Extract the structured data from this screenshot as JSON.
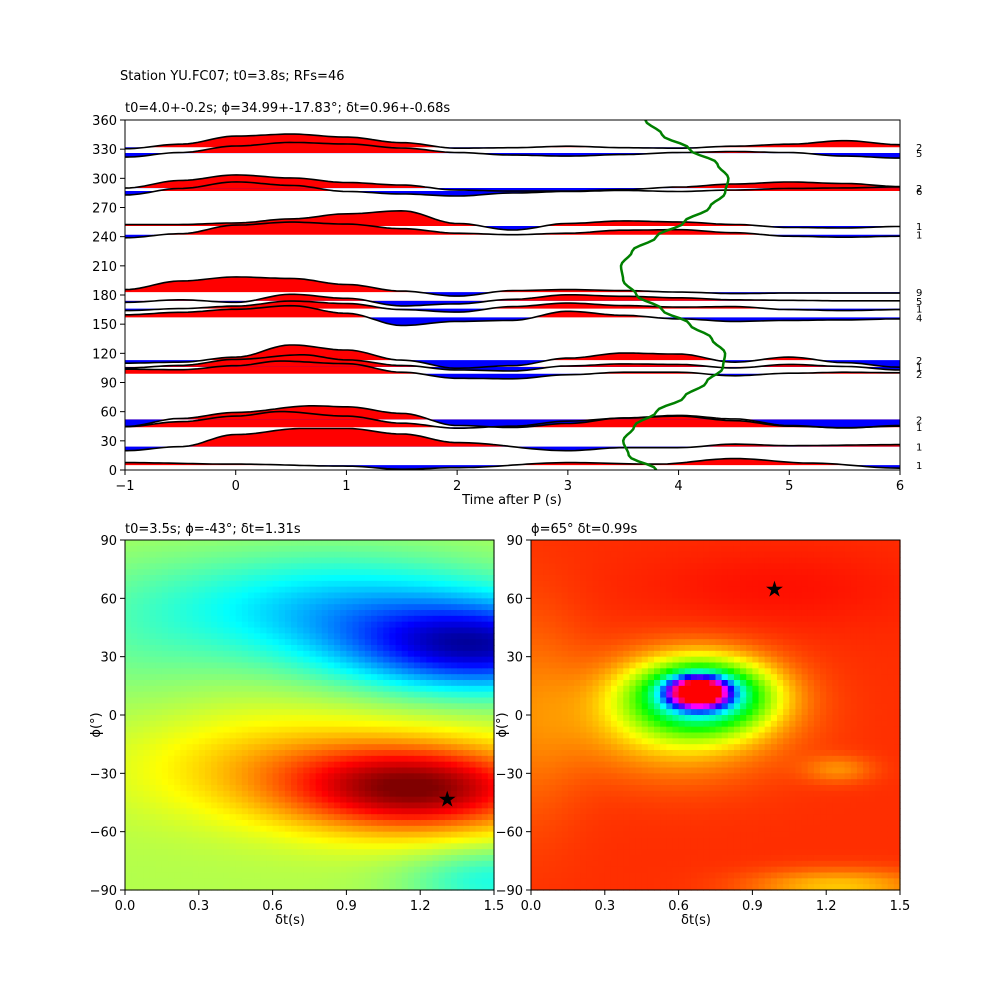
{
  "figure": {
    "suptitle": "Station YU.FC07; t0=3.8s; RFs=46"
  },
  "chart_data": [
    {
      "type": "line",
      "title": "t0=4.0+-0.2s; ϕ=34.99+-17.83°; δt=0.96+-0.68s",
      "xlabel": "Time after P (s)",
      "ylabel": "",
      "xlim": [
        -1,
        6
      ],
      "ylim": [
        0,
        360
      ],
      "xticks": [
        "−1",
        "0",
        "1",
        "2",
        "3",
        "4",
        "5",
        "6"
      ],
      "xtick_values": [
        -1,
        0,
        1,
        2,
        3,
        4,
        5,
        6
      ],
      "yticks": [
        "0",
        "30",
        "60",
        "90",
        "120",
        "150",
        "180",
        "210",
        "240",
        "270",
        "300",
        "330",
        "360"
      ],
      "ytick_values": [
        0,
        30,
        60,
        90,
        120,
        150,
        180,
        210,
        240,
        270,
        300,
        330,
        360
      ],
      "fill_positive_color": "#ff0000",
      "fill_negative_color": "#0000ff",
      "trace_color": "#000000",
      "traces": [
        {
          "baz": 5,
          "count": "1",
          "t": [
            -1,
            0,
            1,
            1.5,
            2,
            3,
            3.8,
            4.5,
            5.2,
            6
          ],
          "v": [
            0.5,
            0.2,
            -0.2,
            -0.8,
            -0.5,
            0.5,
            0.2,
            1.3,
            0.4,
            -0.6
          ]
        },
        {
          "baz": 24,
          "count": "1",
          "t": [
            -1,
            -0.5,
            0,
            0.6,
            1,
            1.5,
            2,
            3,
            3.5,
            4,
            4.5,
            5,
            6
          ],
          "v": [
            -0.8,
            0,
            2.4,
            3.6,
            3.6,
            2.5,
            0.8,
            -0.8,
            -0.2,
            -0.2,
            0.5,
            0.2,
            0.4
          ]
        },
        {
          "baz": 44,
          "count": "1",
          "t": [
            -1,
            -0.5,
            0,
            0.4,
            1,
            1.5,
            2,
            2.5,
            3,
            3.5,
            4,
            4.5,
            5,
            5.5,
            6
          ],
          "v": [
            0.1,
            1.1,
            2.2,
            3.1,
            2.2,
            0.8,
            -0.2,
            0.2,
            1.2,
            1.8,
            2.2,
            1.3,
            0.2,
            -0.1,
            0.2
          ]
        },
        {
          "baz": 52,
          "count": "2",
          "t": [
            -1,
            -0.5,
            0,
            0.7,
            1,
            1.5,
            2,
            2.5,
            3,
            3.5,
            4,
            4.5,
            5,
            5.5,
            6
          ],
          "v": [
            -1.4,
            0.2,
            1.4,
            2.7,
            2.5,
            1.2,
            -1.2,
            -1.6,
            -0.8,
            0.3,
            0.8,
            0.1,
            -1.2,
            -1.7,
            -1.2
          ]
        },
        {
          "baz": 99,
          "count": "2",
          "t": [
            -1,
            -0.5,
            0,
            0.4,
            1,
            1.5,
            2,
            2.5,
            3,
            3.5,
            4,
            4.5,
            5,
            5.5,
            6
          ],
          "v": [
            0.9,
            0.8,
            1.6,
            2.5,
            2.0,
            0.3,
            -0.9,
            -1.0,
            -0.2,
            0.3,
            0.3,
            -0.4,
            0.1,
            0.3,
            0.2
          ]
        },
        {
          "baz": 106,
          "count": "1",
          "t": [
            -1,
            -0.5,
            0,
            0.6,
            1,
            1.5,
            2,
            2.5,
            3,
            3.5,
            4,
            4.5,
            5,
            5.5,
            6
          ],
          "v": [
            -0.2,
            0.3,
            1.5,
            2.4,
            1.4,
            0.3,
            -0.6,
            -0.8,
            0.2,
            0.6,
            0.5,
            -0.2,
            0.5,
            0.1,
            -0.6
          ]
        },
        {
          "baz": 113,
          "count": "2",
          "t": [
            -1,
            -0.5,
            0,
            0.5,
            1,
            1.5,
            2,
            2.5,
            3,
            3.5,
            4,
            4.5,
            5,
            5.5,
            6
          ],
          "v": [
            -0.6,
            -0.4,
            0.6,
            3.0,
            2.0,
            0.0,
            -1.6,
            -1.1,
            0.4,
            1.4,
            1.2,
            -0.4,
            0.6,
            -0.5,
            -1.4
          ]
        },
        {
          "baz": 157,
          "count": "4",
          "t": [
            -1,
            -0.5,
            0,
            0.5,
            1,
            1.5,
            2,
            2.5,
            3,
            3.5,
            4,
            4.5,
            5,
            5.5,
            6
          ],
          "v": [
            0.5,
            1.0,
            1.6,
            2.3,
            0.8,
            -1.6,
            -0.8,
            -0.6,
            1.2,
            0.4,
            -0.3,
            -0.8,
            -0.6,
            -0.5,
            -0.3
          ]
        },
        {
          "baz": 166,
          "count": "1",
          "t": [
            -1,
            -0.5,
            0,
            0.5,
            1,
            1.5,
            2,
            2.5,
            3,
            3.5,
            4,
            4.5,
            5,
            5.5,
            6
          ],
          "v": [
            -0.4,
            0.0,
            0.5,
            1.5,
            1.0,
            -0.2,
            -0.7,
            0.4,
            1.1,
            0.6,
            0.3,
            0.4,
            -0.2,
            -0.4,
            -0.2
          ]
        },
        {
          "baz": 174,
          "count": "5",
          "t": [
            -1,
            -0.5,
            0,
            0.5,
            1,
            1.5,
            2,
            2.5,
            3,
            3.5,
            4,
            4.5,
            5,
            5.5,
            6
          ],
          "v": [
            -0.3,
            0.2,
            -0.3,
            1.3,
            0.5,
            -1.0,
            -0.6,
            0.3,
            1.2,
            0.9,
            0.6,
            0.2,
            0.1,
            0.0,
            0.0
          ]
        },
        {
          "baz": 183,
          "count": "9",
          "t": [
            -1,
            -0.5,
            0,
            0.5,
            1,
            1.5,
            2,
            2.5,
            3,
            3.5,
            4,
            4.5,
            5,
            5.5,
            6
          ],
          "v": [
            0.5,
            2.2,
            3.0,
            2.7,
            1.5,
            0.2,
            -0.8,
            0.3,
            0.5,
            0.3,
            0.0,
            -0.3,
            -0.2,
            -0.2,
            -0.2
          ]
        },
        {
          "baz": 242,
          "count": "1",
          "t": [
            -1,
            -0.5,
            0,
            0.5,
            1,
            1.5,
            2,
            2.5,
            3,
            3.5,
            4,
            4.5,
            5,
            5.5,
            6
          ],
          "v": [
            -0.6,
            0.2,
            1.9,
            2.5,
            2.1,
            1.2,
            0.3,
            0.0,
            0.3,
            0.9,
            1.0,
            0.4,
            -0.3,
            -0.5,
            -0.3
          ]
        },
        {
          "baz": 251,
          "count": "1",
          "t": [
            -1,
            -0.5,
            0,
            0.5,
            1,
            1.5,
            2,
            2.5,
            3,
            3.5,
            4,
            4.5,
            5,
            5.5,
            6
          ],
          "v": [
            0.3,
            0.3,
            0.6,
            1.4,
            2.4,
            3.0,
            0.5,
            -0.8,
            0.5,
            1.0,
            0.8,
            0.3,
            -0.3,
            -0.4,
            -0.1
          ]
        },
        {
          "baz": 287,
          "count": "6",
          "t": [
            -1,
            -0.5,
            0,
            0.5,
            1,
            1.5,
            2,
            2.5,
            3,
            3.5,
            4,
            4.5,
            5,
            5.5,
            6
          ],
          "v": [
            -0.8,
            0.5,
            1.8,
            1.1,
            -0.1,
            -0.6,
            -1.0,
            -0.4,
            -0.1,
            0.1,
            -0.1,
            0.2,
            0.5,
            0.6,
            0.8
          ]
        },
        {
          "baz": 290,
          "count": "2",
          "t": [
            -1,
            -0.5,
            0,
            0.5,
            1,
            1.5,
            2,
            2.5,
            3,
            3.5,
            4,
            4.5,
            5,
            5.5,
            6
          ],
          "v": [
            0.0,
            1.5,
            2.6,
            2.0,
            1.1,
            0.6,
            -0.4,
            -0.6,
            -0.6,
            -0.3,
            0.2,
            0.8,
            1.2,
            0.9,
            0.3
          ]
        },
        {
          "baz": 326,
          "count": "5",
          "t": [
            -1,
            -0.5,
            0,
            0.5,
            1,
            1.5,
            2,
            2.5,
            3,
            3.5,
            4,
            4.5,
            5,
            5.5,
            6
          ],
          "v": [
            -0.8,
            0.1,
            1.4,
            2.1,
            1.8,
            1.0,
            0.1,
            -0.4,
            -0.6,
            -0.3,
            0.1,
            0.3,
            0.1,
            -0.6,
            -1.0
          ]
        },
        {
          "baz": 332,
          "count": "2",
          "t": [
            -1,
            -0.5,
            0,
            0.5,
            1,
            1.5,
            2,
            2.5,
            3,
            3.5,
            4,
            4.5,
            5,
            5.5,
            6
          ],
          "v": [
            -0.3,
            0.6,
            2.2,
            2.6,
            2.0,
            0.9,
            -0.2,
            -0.1,
            0.2,
            -0.1,
            -0.2,
            0.2,
            0.6,
            1.3,
            0.5
          ]
        }
      ],
      "curve_color": "#008000",
      "curve": {
        "baz": [
          0,
          15,
          30,
          45,
          60,
          75,
          90,
          105,
          120,
          135,
          150,
          165,
          180,
          195,
          210,
          225,
          240,
          255,
          270,
          285,
          300,
          315,
          330,
          345,
          360
        ],
        "t": [
          3.8,
          3.55,
          3.5,
          3.6,
          3.8,
          4.05,
          4.25,
          4.4,
          4.42,
          4.3,
          4.1,
          3.85,
          3.62,
          3.5,
          3.48,
          3.58,
          3.8,
          4.05,
          4.28,
          4.42,
          4.45,
          4.35,
          4.1,
          3.85,
          3.7
        ]
      }
    },
    {
      "type": "heatmap",
      "title": "t0=3.5s; ϕ=-43°; δt=1.31s",
      "xlabel": "δt(s)",
      "ylabel": "ϕ(°)",
      "xlim": [
        0,
        1.5
      ],
      "ylim": [
        -90,
        90
      ],
      "xticks": [
        "0.0",
        "0.3",
        "0.6",
        "0.9",
        "1.2",
        "1.5"
      ],
      "xtick_values": [
        0,
        0.3,
        0.6,
        0.9,
        1.2,
        1.5
      ],
      "yticks": [
        "−90",
        "−60",
        "−30",
        "0",
        "30",
        "60",
        "90"
      ],
      "ytick_values": [
        -90,
        -60,
        -30,
        0,
        30,
        60,
        90
      ],
      "colormap": "jet",
      "best": {
        "dt": 1.31,
        "phi": -43
      }
    },
    {
      "type": "heatmap",
      "title": "ϕ=65° δt=0.99s",
      "xlabel": "δt(s)",
      "ylabel": "ϕ(°)",
      "xlim": [
        0,
        1.5
      ],
      "ylim": [
        -90,
        90
      ],
      "xticks": [
        "0.0",
        "0.3",
        "0.6",
        "0.9",
        "1.2",
        "1.5"
      ],
      "xtick_values": [
        0,
        0.3,
        0.6,
        0.9,
        1.2,
        1.5
      ],
      "yticks": [
        "−90",
        "−60",
        "−30",
        "0",
        "30",
        "60",
        "90"
      ],
      "ytick_values": [
        -90,
        -60,
        -30,
        0,
        30,
        60,
        90
      ],
      "colormap": "hsv",
      "best": {
        "dt": 0.99,
        "phi": 65
      }
    }
  ]
}
